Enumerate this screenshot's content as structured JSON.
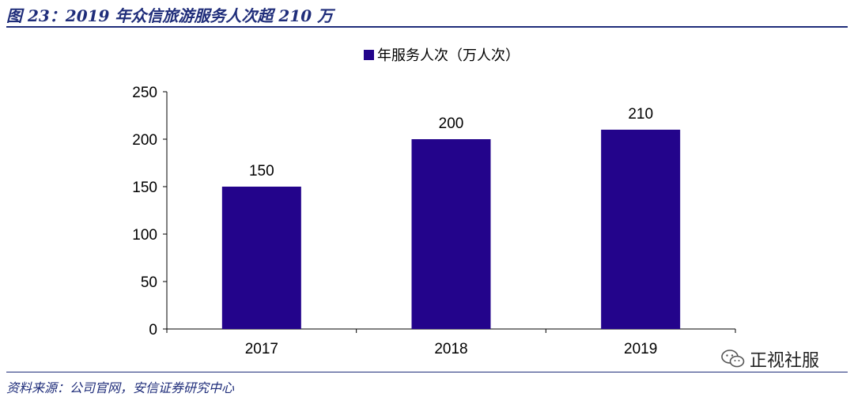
{
  "header": {
    "title": "图 23：2019 年众信旅游服务人次超 210 万"
  },
  "footer": {
    "source": "资料来源：公司官网，安信证券研究中心",
    "watermark": "正视社服"
  },
  "colors": {
    "bar": "#23048b",
    "rule": "#1f2d7a"
  },
  "chart_data": {
    "type": "bar",
    "categories": [
      "2017",
      "2018",
      "2019"
    ],
    "series": [
      {
        "name": "年服务人次（万人次）",
        "values": [
          150,
          200,
          210
        ]
      }
    ],
    "data_labels": [
      "150",
      "200",
      "210"
    ],
    "yticks": [
      0,
      50,
      100,
      150,
      200,
      250
    ],
    "ylim": [
      0,
      250
    ],
    "legend": "top-center",
    "grid": false
  }
}
